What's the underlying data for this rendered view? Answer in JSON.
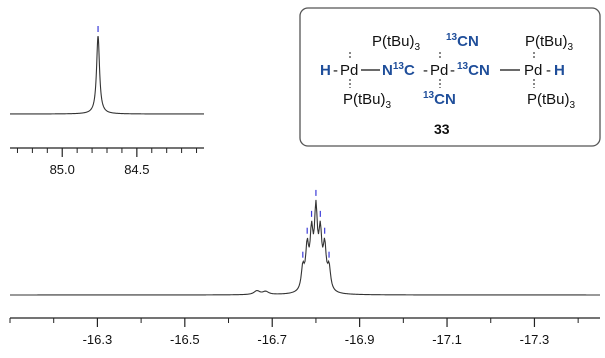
{
  "chart_data": [
    {
      "type": "line",
      "panel": "inset",
      "xlabel": "",
      "ylabel": "",
      "xlim": [
        85.35,
        84.05
      ],
      "x_ticks": [
        85.0,
        84.5
      ],
      "x_tick_labels": [
        "85.0",
        "84.5"
      ],
      "peaks": [
        {
          "x": 84.76,
          "height": 1.0
        }
      ],
      "grid": false
    },
    {
      "type": "line",
      "panel": "main",
      "xlabel": "",
      "ylabel": "",
      "xlim": [
        -16.1,
        -17.45
      ],
      "x_ticks": [
        -16.3,
        -16.5,
        -16.7,
        -16.9,
        -17.1,
        -17.3
      ],
      "x_tick_labels": [
        "-16.3",
        "-16.5",
        "-16.7",
        "-16.9",
        "-17.1",
        "-17.3"
      ],
      "peaks": [
        {
          "x": -16.77,
          "height": 0.3
        },
        {
          "x": -16.78,
          "height": 0.55
        },
        {
          "x": -16.79,
          "height": 0.7
        },
        {
          "x": -16.8,
          "height": 1.0
        },
        {
          "x": -16.81,
          "height": 0.7
        },
        {
          "x": -16.82,
          "height": 0.55
        },
        {
          "x": -16.83,
          "height": 0.3
        }
      ],
      "grid": false
    }
  ],
  "structure": {
    "top_left": "P(tBu)",
    "top_right": "P(tBu)",
    "bottom_left": "P(tBu)",
    "bottom_right": "P(tBu)",
    "subscript": "3",
    "cn_label": "CN",
    "c13": "13",
    "h": "H",
    "pd": "Pd",
    "n": "N",
    "c": "C",
    "compound_number": "33"
  },
  "colors": {
    "spectrum": "#333333",
    "peak_marker": "#3b3bd8",
    "struct_blue": "#1f4e9a",
    "box_border": "#555555"
  }
}
